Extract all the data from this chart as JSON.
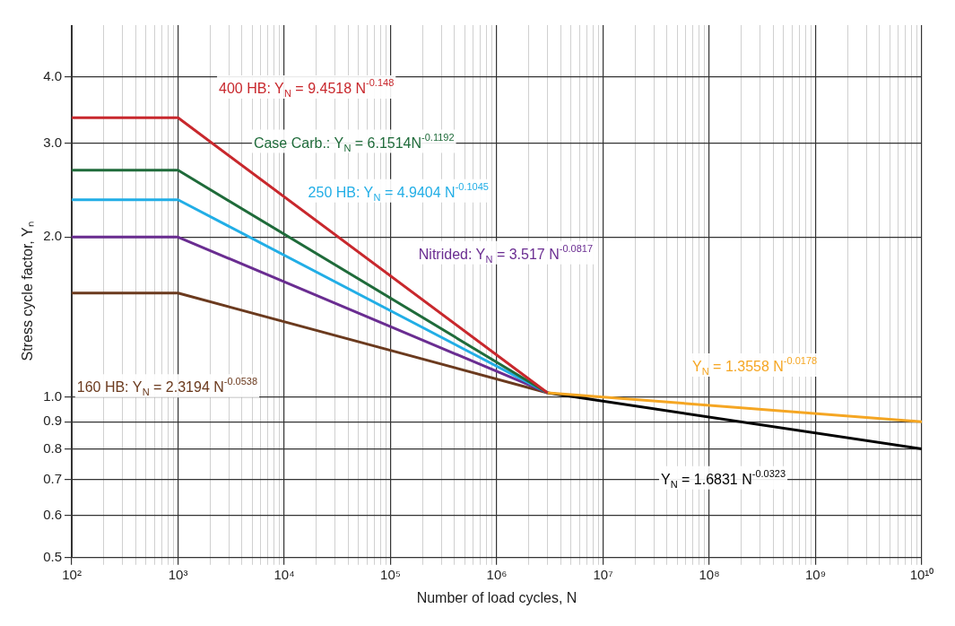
{
  "chart_data": {
    "type": "line",
    "xlabel": "Number of load cycles, N",
    "ylabel": "Stress cycle factor, Yₙ",
    "log": "xy",
    "grid": true,
    "legend": false,
    "marker": "none",
    "line_style": "solid",
    "xlim": [
      100,
      10000000000
    ],
    "ylim": [
      0.5,
      5
    ],
    "xticks": [
      {
        "value": 100,
        "label": "10²"
      },
      {
        "value": 200,
        "label": null
      },
      {
        "value": 300,
        "label": null
      },
      {
        "value": 400,
        "label": null
      },
      {
        "value": 500,
        "label": null
      },
      {
        "value": 600,
        "label": null
      },
      {
        "value": 700,
        "label": null
      },
      {
        "value": 800,
        "label": null
      },
      {
        "value": 900,
        "label": null
      },
      {
        "value": 1000,
        "label": "10³"
      },
      {
        "value": 2000,
        "label": null
      },
      {
        "value": 3000,
        "label": null
      },
      {
        "value": 4000,
        "label": null
      },
      {
        "value": 5000,
        "label": null
      },
      {
        "value": 6000,
        "label": null
      },
      {
        "value": 7000,
        "label": null
      },
      {
        "value": 8000,
        "label": null
      },
      {
        "value": 9000,
        "label": null
      },
      {
        "value": 10000,
        "label": "10⁴"
      },
      {
        "value": 20000,
        "label": null
      },
      {
        "value": 30000,
        "label": null
      },
      {
        "value": 40000,
        "label": null
      },
      {
        "value": 50000,
        "label": null
      },
      {
        "value": 60000,
        "label": null
      },
      {
        "value": 70000,
        "label": null
      },
      {
        "value": 80000,
        "label": null
      },
      {
        "value": 90000,
        "label": null
      },
      {
        "value": 100000,
        "label": "10⁵"
      },
      {
        "value": 200000,
        "label": null
      },
      {
        "value": 300000,
        "label": null
      },
      {
        "value": 400000,
        "label": null
      },
      {
        "value": 500000,
        "label": null
      },
      {
        "value": 600000,
        "label": null
      },
      {
        "value": 700000,
        "label": null
      },
      {
        "value": 800000,
        "label": null
      },
      {
        "value": 900000,
        "label": null
      },
      {
        "value": 1000000,
        "label": "10⁶"
      },
      {
        "value": 2000000,
        "label": null
      },
      {
        "value": 3000000,
        "label": null
      },
      {
        "value": 4000000,
        "label": null
      },
      {
        "value": 5000000,
        "label": null
      },
      {
        "value": 6000000,
        "label": null
      },
      {
        "value": 7000000,
        "label": null
      },
      {
        "value": 8000000,
        "label": null
      },
      {
        "value": 9000000,
        "label": null
      },
      {
        "value": 10000000,
        "label": "10⁷"
      },
      {
        "value": 20000000,
        "label": null
      },
      {
        "value": 30000000,
        "label": null
      },
      {
        "value": 40000000,
        "label": null
      },
      {
        "value": 50000000,
        "label": null
      },
      {
        "value": 60000000,
        "label": null
      },
      {
        "value": 70000000,
        "label": null
      },
      {
        "value": 80000000,
        "label": null
      },
      {
        "value": 90000000,
        "label": null
      },
      {
        "value": 100000000,
        "label": "10⁸"
      },
      {
        "value": 200000000,
        "label": null
      },
      {
        "value": 300000000,
        "label": null
      },
      {
        "value": 400000000,
        "label": null
      },
      {
        "value": 500000000,
        "label": null
      },
      {
        "value": 600000000,
        "label": null
      },
      {
        "value": 700000000,
        "label": null
      },
      {
        "value": 800000000,
        "label": null
      },
      {
        "value": 900000000,
        "label": null
      },
      {
        "value": 1000000000,
        "label": "10⁹"
      },
      {
        "value": 2000000000,
        "label": null
      },
      {
        "value": 3000000000,
        "label": null
      },
      {
        "value": 4000000000,
        "label": null
      },
      {
        "value": 5000000000,
        "label": null
      },
      {
        "value": 6000000000,
        "label": null
      },
      {
        "value": 7000000000,
        "label": null
      },
      {
        "value": 8000000000,
        "label": null
      },
      {
        "value": 9000000000,
        "label": null
      },
      {
        "value": 10000000000,
        "label": "10¹⁰"
      }
    ],
    "yticks": [
      {
        "value": 0.5,
        "label": "0.5"
      },
      {
        "value": 0.6,
        "label": "0.6"
      },
      {
        "value": 0.7,
        "label": "0.7"
      },
      {
        "value": 0.8,
        "label": "0.8"
      },
      {
        "value": 0.9,
        "label": "0.9"
      },
      {
        "value": 1,
        "label": "1.0"
      },
      {
        "value": 2,
        "label": "2.0"
      },
      {
        "value": 3,
        "label": "3.0"
      },
      {
        "value": 4,
        "label": "4.0"
      }
    ],
    "series": [
      {
        "color": "#c8282d",
        "x": [
          100,
          1000,
          3000000
        ],
        "values": [
          3.35,
          3.35,
          1.02
        ]
      },
      {
        "color": "#1f6b3a",
        "x": [
          100,
          1000,
          3000000
        ],
        "values": [
          2.67,
          2.67,
          1.02
        ]
      },
      {
        "color": "#22aee6",
        "x": [
          100,
          1000,
          3000000
        ],
        "values": [
          2.35,
          2.35,
          1.02
        ]
      },
      {
        "color": "#6a2d91",
        "x": [
          100,
          1000,
          3000000
        ],
        "values": [
          2.0,
          2.0,
          1.02
        ]
      },
      {
        "color": "#6b3a1e",
        "x": [
          100,
          1000,
          3000000
        ],
        "values": [
          1.57,
          1.57,
          1.02
        ]
      },
      {
        "color": "#f5a623",
        "x": [
          3000000,
          10000000000
        ],
        "values": [
          1.02,
          0.9
        ]
      },
      {
        "color": "#000000",
        "x": [
          3000000,
          10000000000
        ],
        "values": [
          1.02,
          0.8
        ]
      }
    ],
    "annotations": [
      "400 HB: Y$_{N}$ = 9.4518 N$^{-0.148}$",
      "Case Carb.: Y$_{N}$ = 6.1514N$^{-0.1192}$",
      "250 HB: Y$_{N}$ = 4.9404 N$^{-0.1045}$",
      "Nitrided: Y$_{N}$ = 3.517 N$^{-0.0817}$",
      "160 HB: Y$_{N}$ = 2.3194 N$^{-0.0538}$",
      "Y$_{N}$ = 1.3558 N$^{-0.0178}$",
      "Y$_{N}$ = 1.6831 N$^{-0.0323}$"
    ]
  }
}
